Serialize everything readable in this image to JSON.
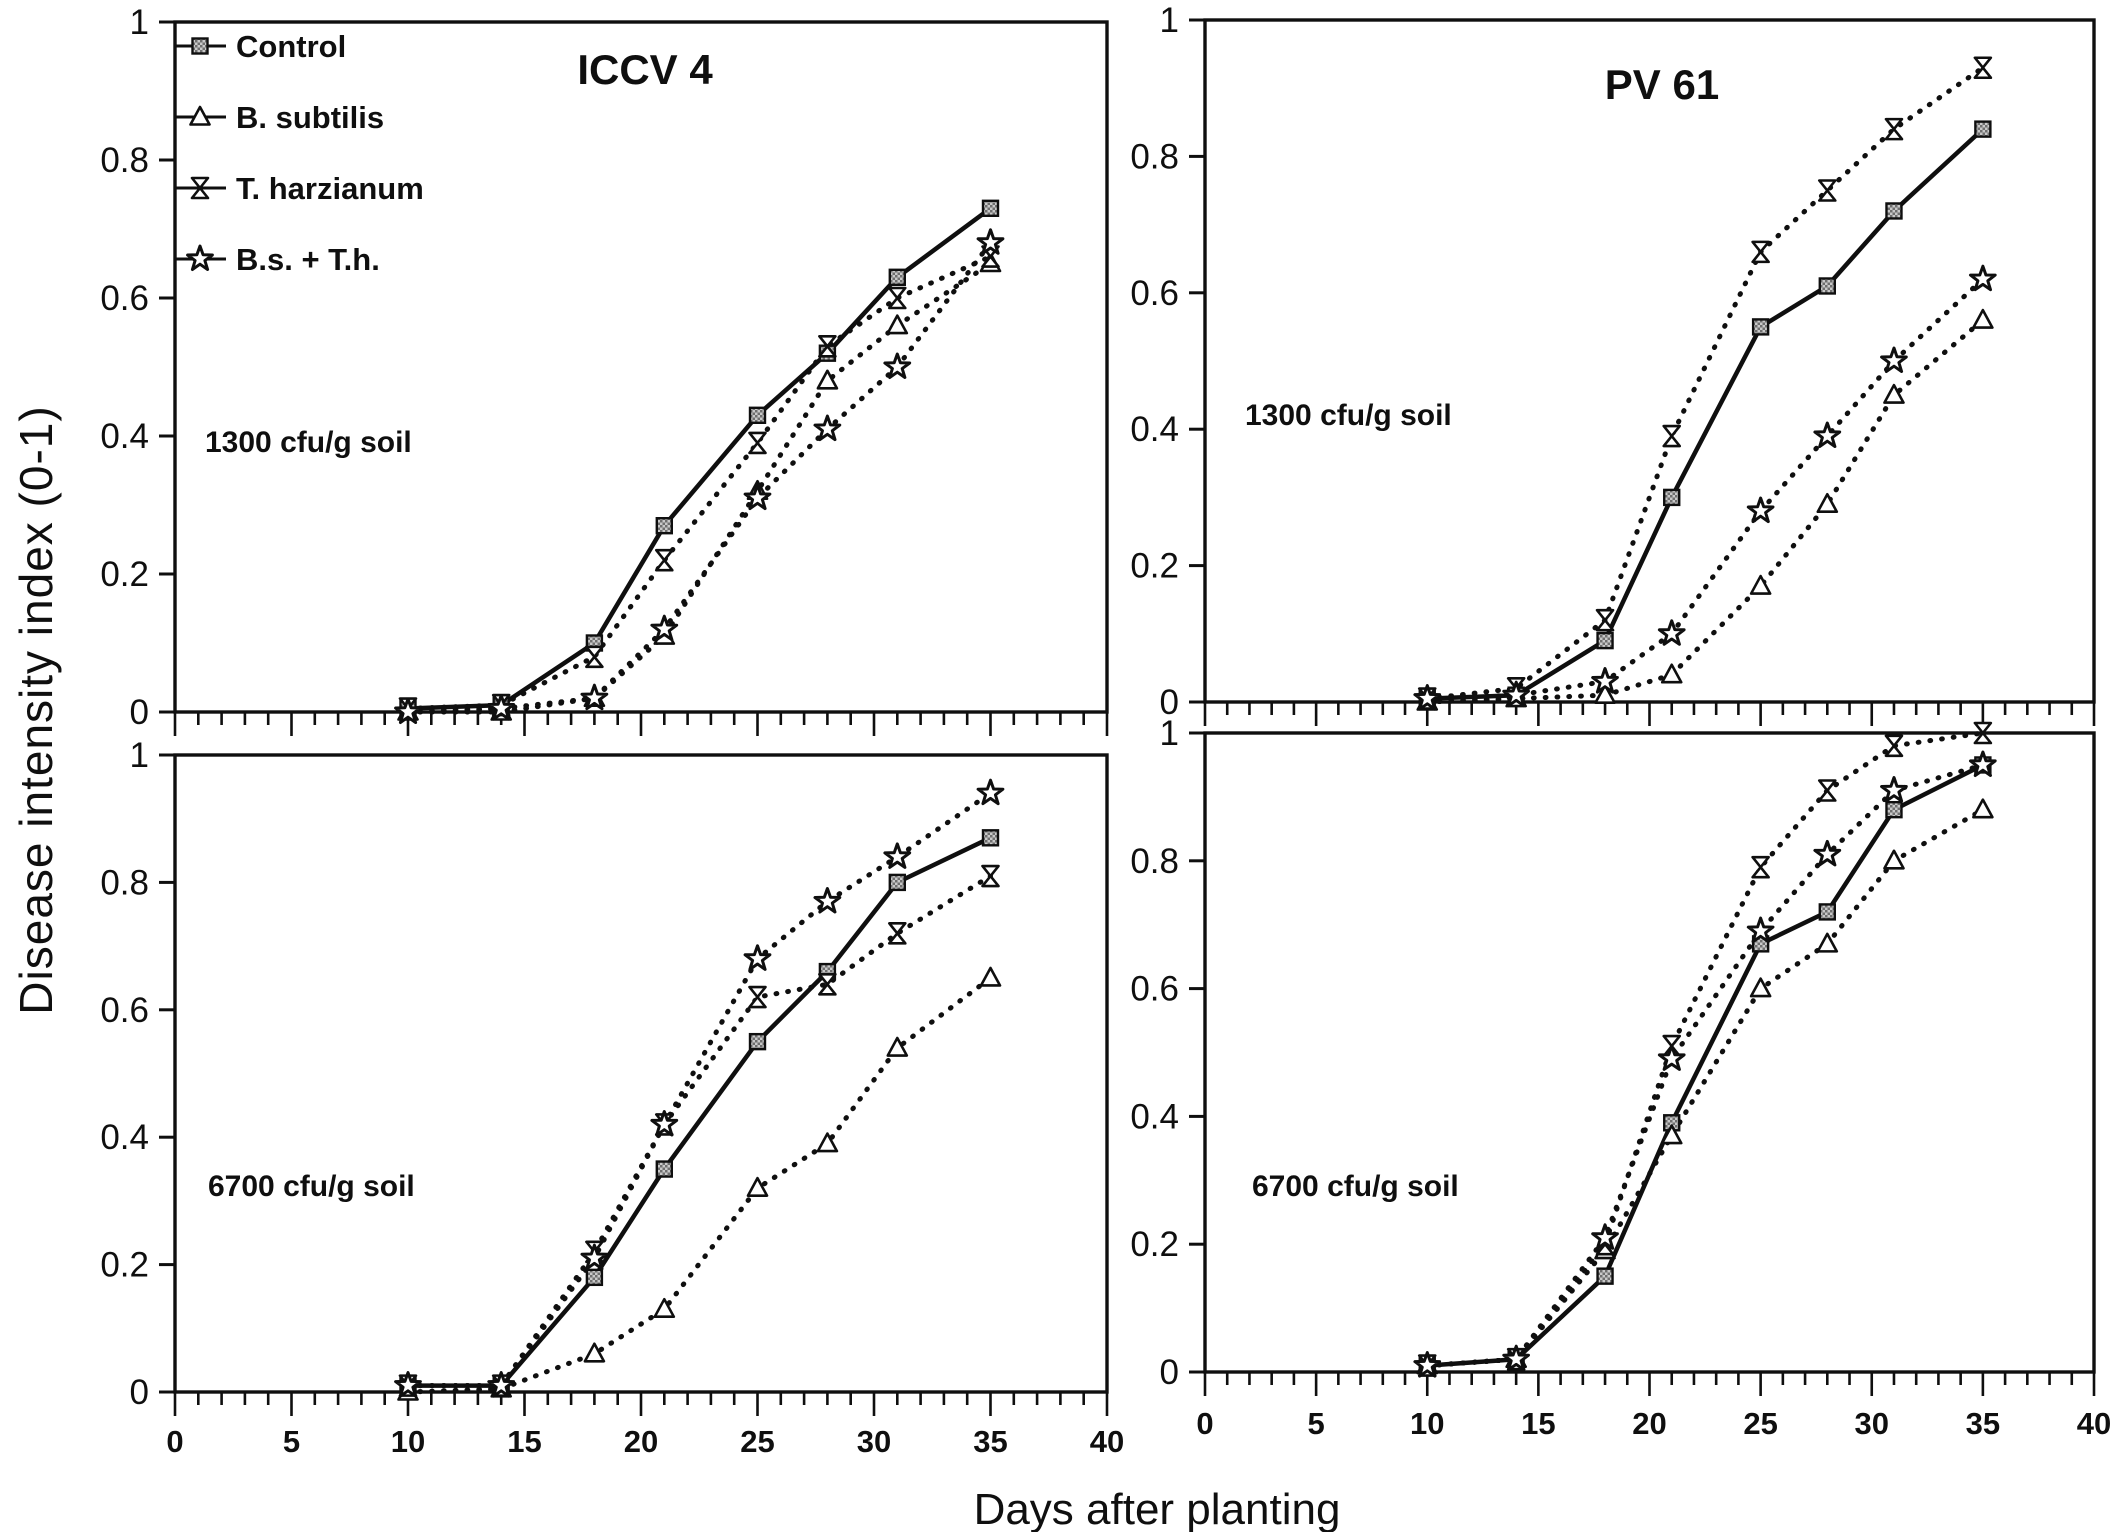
{
  "figure": {
    "y_axis_label": "Disease intensity index (0-1)",
    "x_axis_label": "Days after planting",
    "colors": {
      "ink": "#0f0f0f",
      "paper": "#ffffff",
      "square_fill_dark": "#6f6f6f",
      "square_fill_light": "#c9c9c9"
    },
    "legend": [
      {
        "label": "Control",
        "marker": "square",
        "line": "solid"
      },
      {
        "label": "B. subtilis",
        "marker": "triangle",
        "line": "dotted"
      },
      {
        "label": "T. harzianum",
        "marker": "hourglass",
        "line": "dotted"
      },
      {
        "label": "B.s. + T.h.",
        "marker": "star",
        "line": "dotted"
      }
    ]
  },
  "chart_data": [
    {
      "id": "top-left",
      "type": "line",
      "title": "ICCV 4",
      "annotation": "1300 cfu/g soil",
      "x": [
        10,
        14,
        18,
        21,
        25,
        28,
        31,
        35
      ],
      "xlim": [
        0,
        40
      ],
      "ylim": [
        0,
        1
      ],
      "x_ticks_labeled": [
        0,
        5,
        10,
        15,
        20,
        25,
        30,
        35,
        40
      ],
      "x_tick_step": 1,
      "y_ticks": [
        0,
        0.2,
        0.4,
        0.6,
        0.8,
        1
      ],
      "show_x_tick_labels": false,
      "show_legend": true,
      "series": [
        {
          "name": "Control",
          "marker": "square",
          "line": "solid",
          "values": [
            0.005,
            0.01,
            0.1,
            0.27,
            0.43,
            0.52,
            0.63,
            0.73
          ]
        },
        {
          "name": "B. subtilis",
          "marker": "triangle",
          "line": "dotted",
          "values": [
            0,
            0,
            0.02,
            0.11,
            0.32,
            0.48,
            0.56,
            0.65
          ]
        },
        {
          "name": "T. harzianum",
          "marker": "hourglass",
          "line": "dotted",
          "values": [
            0.005,
            0.01,
            0.08,
            0.22,
            0.39,
            0.53,
            0.6,
            0.66
          ]
        },
        {
          "name": "B.s. + T.h.",
          "marker": "star",
          "line": "dotted",
          "values": [
            0,
            0.005,
            0.02,
            0.12,
            0.31,
            0.41,
            0.5,
            0.68
          ]
        }
      ]
    },
    {
      "id": "top-right",
      "type": "line",
      "title": "PV 61",
      "annotation": "1300 cfu/g soil",
      "x": [
        10,
        14,
        18,
        21,
        25,
        28,
        31,
        35
      ],
      "xlim": [
        0,
        40
      ],
      "ylim": [
        0,
        1
      ],
      "x_ticks_labeled": [
        0,
        5,
        10,
        15,
        20,
        25,
        30,
        35,
        40
      ],
      "x_tick_step": 1,
      "y_ticks": [
        0,
        0.2,
        0.4,
        0.6,
        0.8,
        1
      ],
      "show_x_tick_labels": false,
      "show_legend": false,
      "series": [
        {
          "name": "Control",
          "marker": "square",
          "line": "solid",
          "values": [
            0.005,
            0.01,
            0.09,
            0.3,
            0.55,
            0.61,
            0.72,
            0.84
          ]
        },
        {
          "name": "B. subtilis",
          "marker": "triangle",
          "line": "dotted",
          "values": [
            0,
            0.005,
            0.01,
            0.04,
            0.17,
            0.29,
            0.45,
            0.56
          ]
        },
        {
          "name": "T. harzianum",
          "marker": "hourglass",
          "line": "dotted",
          "values": [
            0.005,
            0.02,
            0.12,
            0.39,
            0.66,
            0.75,
            0.84,
            0.93
          ]
        },
        {
          "name": "B.s. + T.h.",
          "marker": "star",
          "line": "dotted",
          "values": [
            0.005,
            0.01,
            0.03,
            0.1,
            0.28,
            0.39,
            0.5,
            0.62
          ]
        }
      ]
    },
    {
      "id": "bottom-left",
      "type": "line",
      "title": "",
      "annotation": "6700 cfu/g soil",
      "x": [
        10,
        14,
        18,
        21,
        25,
        28,
        31,
        35
      ],
      "xlim": [
        0,
        40
      ],
      "ylim": [
        0,
        1
      ],
      "x_ticks_labeled": [
        0,
        5,
        10,
        15,
        20,
        25,
        30,
        35,
        40
      ],
      "x_tick_step": 1,
      "y_ticks": [
        0,
        0.2,
        0.4,
        0.6,
        0.8,
        1
      ],
      "show_x_tick_labels": true,
      "show_legend": false,
      "series": [
        {
          "name": "Control",
          "marker": "square",
          "line": "solid",
          "values": [
            0.01,
            0.01,
            0.18,
            0.35,
            0.55,
            0.66,
            0.8,
            0.87
          ]
        },
        {
          "name": "B. subtilis",
          "marker": "triangle",
          "line": "dotted",
          "values": [
            0,
            0.005,
            0.06,
            0.13,
            0.32,
            0.39,
            0.54,
            0.65
          ]
        },
        {
          "name": "T. harzianum",
          "marker": "hourglass",
          "line": "dotted",
          "values": [
            0.01,
            0.01,
            0.22,
            0.42,
            0.62,
            0.64,
            0.72,
            0.81
          ]
        },
        {
          "name": "B.s. + T.h.",
          "marker": "star",
          "line": "dotted",
          "values": [
            0.01,
            0.01,
            0.21,
            0.42,
            0.68,
            0.77,
            0.84,
            0.94
          ]
        }
      ]
    },
    {
      "id": "bottom-right",
      "type": "line",
      "title": "",
      "annotation": "6700 cfu/g soil",
      "x": [
        10,
        14,
        18,
        21,
        25,
        28,
        31,
        35
      ],
      "xlim": [
        0,
        40
      ],
      "ylim": [
        0,
        1
      ],
      "x_ticks_labeled": [
        0,
        5,
        10,
        15,
        20,
        25,
        30,
        35,
        40
      ],
      "x_tick_step": 1,
      "y_ticks": [
        0,
        0.2,
        0.4,
        0.6,
        0.8,
        1
      ],
      "show_x_tick_labels": true,
      "show_legend": false,
      "series": [
        {
          "name": "Control",
          "marker": "square",
          "line": "solid",
          "values": [
            0.01,
            0.02,
            0.15,
            0.39,
            0.67,
            0.72,
            0.88,
            0.95
          ]
        },
        {
          "name": "B. subtilis",
          "marker": "triangle",
          "line": "dotted",
          "values": [
            0.01,
            0.02,
            0.19,
            0.37,
            0.6,
            0.67,
            0.8,
            0.88
          ]
        },
        {
          "name": "T. harzianum",
          "marker": "hourglass",
          "line": "dotted",
          "values": [
            0.01,
            0.02,
            0.2,
            0.51,
            0.79,
            0.91,
            0.98,
            1.0
          ]
        },
        {
          "name": "B.s. + T.h.",
          "marker": "star",
          "line": "dotted",
          "values": [
            0.01,
            0.02,
            0.21,
            0.49,
            0.69,
            0.81,
            0.91,
            0.95
          ]
        }
      ]
    }
  ]
}
